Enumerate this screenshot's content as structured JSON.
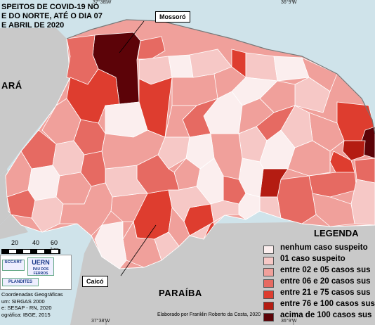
{
  "title": [
    "SPEITOS DE COVID-19 NO",
    "E DO NORTE, ATÉ O DIA 07",
    "E ABRIL DE 2020"
  ],
  "coords": {
    "top_left": "37°38'W",
    "top_right": "36°9'W",
    "bottom_left": "37°38'W",
    "bottom_right": "36°9'W"
  },
  "states": {
    "west": "ARÁ",
    "south": "PARAÍBA"
  },
  "callouts": {
    "mossoro": "Mossoró",
    "caico": "Caicó"
  },
  "legend": {
    "title": "LEGENDA",
    "items": [
      {
        "label": "nenhum caso suspeito",
        "color": "#fbeeee"
      },
      {
        "label": "01 caso suspeito",
        "color": "#f6c8c6"
      },
      {
        "label": "entre 02 e 05 casos sus",
        "color": "#f0a09b"
      },
      {
        "label": "entre 06 e 20 casos sus",
        "color": "#e66a62"
      },
      {
        "label": "entre 21 e 75 casos sus",
        "color": "#de3d2f"
      },
      {
        "label": "entre 76 e 100 casos sus",
        "color": "#b41c12"
      },
      {
        "label": "acima de 100 casos sus",
        "color": "#5c0308"
      }
    ]
  },
  "scale": {
    "labels": [
      "20",
      "40",
      "60 km"
    ]
  },
  "logos": {
    "uern": "UERN",
    "uern_sub": "PAU DOS FERROS",
    "plandites": "PLANDITES",
    "sccart": "SCCART"
  },
  "notes": [
    "Coordenadas Geográficas",
    "um: SIRGAS 2000",
    "e: SESAP - RN, 2020",
    "ográfica: IBGE, 2015"
  ],
  "credit": "Elaborado por Franklin Roberto da Costa, 2020"
}
